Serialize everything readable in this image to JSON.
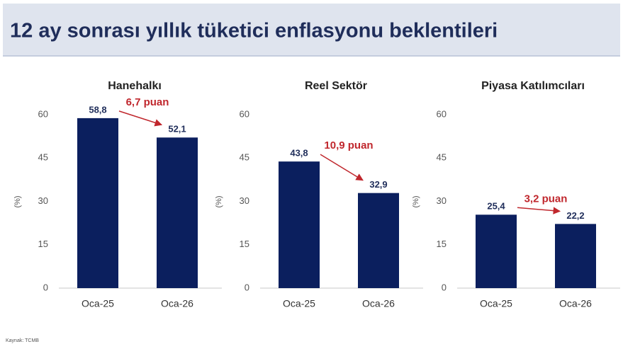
{
  "title": "12 ay sonrası yıllık tüketici enflasyonu beklentileri",
  "source": "Kaynak: TCMB",
  "chart_data": [
    {
      "type": "bar",
      "title": "Hanehalkı",
      "y_label": "(%)",
      "categories": [
        "Oca-25",
        "Oca-26"
      ],
      "values": [
        58.8,
        52.1
      ],
      "value_labels": [
        "58,8",
        "52,1"
      ],
      "annotation": "6,7 puan",
      "color": "#0b1f5e",
      "ylim": [
        0,
        60
      ],
      "yticks": [
        0,
        15,
        30,
        45,
        60
      ]
    },
    {
      "type": "bar",
      "title": "Reel Sektör",
      "y_label": "(%)",
      "categories": [
        "Oca-25",
        "Oca-26"
      ],
      "values": [
        43.8,
        32.9
      ],
      "value_labels": [
        "43,8",
        "32,9"
      ],
      "annotation": "10,9 puan",
      "color": "#0b1f5e",
      "ylim": [
        0,
        60
      ],
      "yticks": [
        0,
        15,
        30,
        45,
        60
      ]
    },
    {
      "type": "bar",
      "title": "Piyasa Katılımcıları",
      "y_label": "(%)",
      "categories": [
        "Oca-25",
        "Oca-26"
      ],
      "values": [
        25.4,
        22.2
      ],
      "value_labels": [
        "25,4",
        "22,2"
      ],
      "annotation": "3,2 puan",
      "color": "#0b1f5e",
      "ylim": [
        0,
        60
      ],
      "yticks": [
        0,
        15,
        30,
        45,
        60
      ]
    }
  ]
}
